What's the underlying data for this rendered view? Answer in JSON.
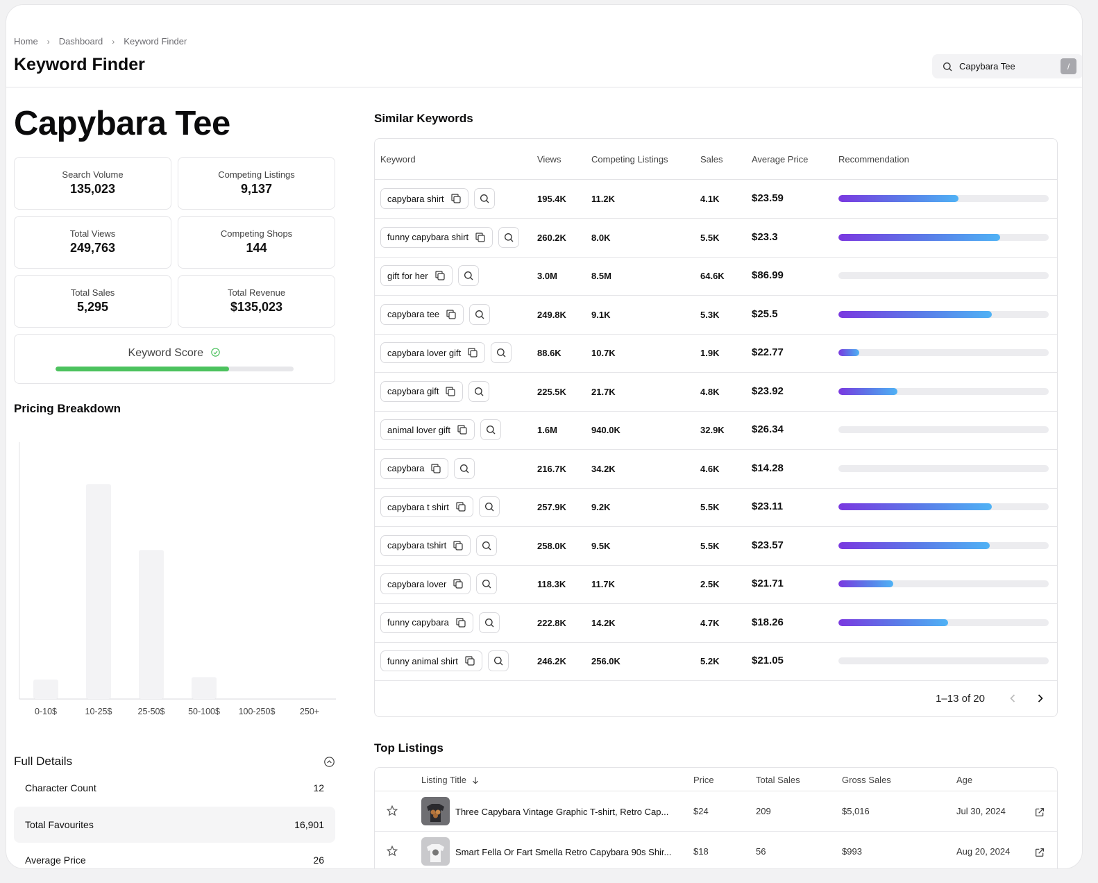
{
  "breadcrumb": [
    "Home",
    "Dashboard",
    "Keyword Finder"
  ],
  "page_title": "Keyword Finder",
  "search": {
    "value": "Capybara Tee",
    "shortcut": "/"
  },
  "keyword": "Capybara Tee",
  "stats": {
    "search_volume": {
      "label": "Search Volume",
      "value": "135,023"
    },
    "competing_listings": {
      "label": "Competing Listings",
      "value": "9,137"
    },
    "total_views": {
      "label": "Total Views",
      "value": "249,763"
    },
    "competing_shops": {
      "label": "Competing Shops",
      "value": "144"
    },
    "total_sales": {
      "label": "Total Sales",
      "value": "5,295"
    },
    "total_revenue": {
      "label": "Total Revenue",
      "value": "$135,023"
    }
  },
  "keyword_score": {
    "label": "Keyword Score",
    "fraction": 0.73,
    "color": "#4cc25e"
  },
  "pricing": {
    "title": "Pricing Breakdown",
    "chart_data": {
      "type": "bar",
      "categories": [
        "0-10$",
        "10-25$",
        "25-50$",
        "50-100$",
        "100-250$",
        "250+"
      ],
      "values": [
        8,
        88,
        61,
        9,
        0,
        0
      ],
      "ylim": [
        0,
        100
      ],
      "grid": false,
      "bar_color": "#f3f3f5"
    }
  },
  "full_details": {
    "title": "Full Details",
    "rows": [
      {
        "label": "Character Count",
        "value": "12"
      },
      {
        "label": "Total Favourites",
        "value": "16,901"
      },
      {
        "label": "Average Price",
        "value": "26"
      }
    ]
  },
  "similar": {
    "title": "Similar Keywords",
    "columns": [
      "Keyword",
      "Views",
      "Competing Listings",
      "Sales",
      "Average Price",
      "Recommendation"
    ],
    "rows": [
      {
        "keyword": "capybara shirt",
        "views": "195.4K",
        "competing": "11.2K",
        "sales": "4.1K",
        "price": "$23.59",
        "rec": 0.57
      },
      {
        "keyword": "funny capybara shirt",
        "views": "260.2K",
        "competing": "8.0K",
        "sales": "5.5K",
        "price": "$23.3",
        "rec": 0.77
      },
      {
        "keyword": "gift for her",
        "views": "3.0M",
        "competing": "8.5M",
        "sales": "64.6K",
        "price": "$86.99",
        "rec": 0
      },
      {
        "keyword": "capybara tee",
        "views": "249.8K",
        "competing": "9.1K",
        "sales": "5.3K",
        "price": "$25.5",
        "rec": 0.73
      },
      {
        "keyword": "capybara lover gift",
        "views": "88.6K",
        "competing": "10.7K",
        "sales": "1.9K",
        "price": "$22.77",
        "rec": 0.1
      },
      {
        "keyword": "capybara gift",
        "views": "225.5K",
        "competing": "21.7K",
        "sales": "4.8K",
        "price": "$23.92",
        "rec": 0.28
      },
      {
        "keyword": "animal lover gift",
        "views": "1.6M",
        "competing": "940.0K",
        "sales": "32.9K",
        "price": "$26.34",
        "rec": 0
      },
      {
        "keyword": "capybara",
        "views": "216.7K",
        "competing": "34.2K",
        "sales": "4.6K",
        "price": "$14.28",
        "rec": 0
      },
      {
        "keyword": "capybara t shirt",
        "views": "257.9K",
        "competing": "9.2K",
        "sales": "5.5K",
        "price": "$23.11",
        "rec": 0.73
      },
      {
        "keyword": "capybara tshirt",
        "views": "258.0K",
        "competing": "9.5K",
        "sales": "5.5K",
        "price": "$23.57",
        "rec": 0.72
      },
      {
        "keyword": "capybara lover",
        "views": "118.3K",
        "competing": "11.7K",
        "sales": "2.5K",
        "price": "$21.71",
        "rec": 0.26
      },
      {
        "keyword": "funny capybara",
        "views": "222.8K",
        "competing": "14.2K",
        "sales": "4.7K",
        "price": "$18.26",
        "rec": 0.52
      },
      {
        "keyword": "funny animal shirt",
        "views": "246.2K",
        "competing": "256.0K",
        "sales": "5.2K",
        "price": "$21.05",
        "rec": 0
      }
    ],
    "pagination": "1–13 of 20"
  },
  "top_listings": {
    "title": "Top Listings",
    "columns": [
      "Listing Title",
      "Price",
      "Total Sales",
      "Gross Sales",
      "Age"
    ],
    "rows": [
      {
        "title": "Three Capybara Vintage Graphic T-shirt, Retro Cap...",
        "price": "$24",
        "sales": "209",
        "gross": "$5,016",
        "age": "Jul 30, 2024"
      },
      {
        "title": "Smart Fella Or Fart Smella Retro Capybara 90s Shir...",
        "price": "$18",
        "sales": "56",
        "gross": "$993",
        "age": "Aug 20, 2024"
      }
    ]
  },
  "colors": {
    "accent_green": "#4cc25e",
    "rec_gradient_start": "#7a38e0",
    "rec_gradient_end": "#4fb2f5"
  }
}
